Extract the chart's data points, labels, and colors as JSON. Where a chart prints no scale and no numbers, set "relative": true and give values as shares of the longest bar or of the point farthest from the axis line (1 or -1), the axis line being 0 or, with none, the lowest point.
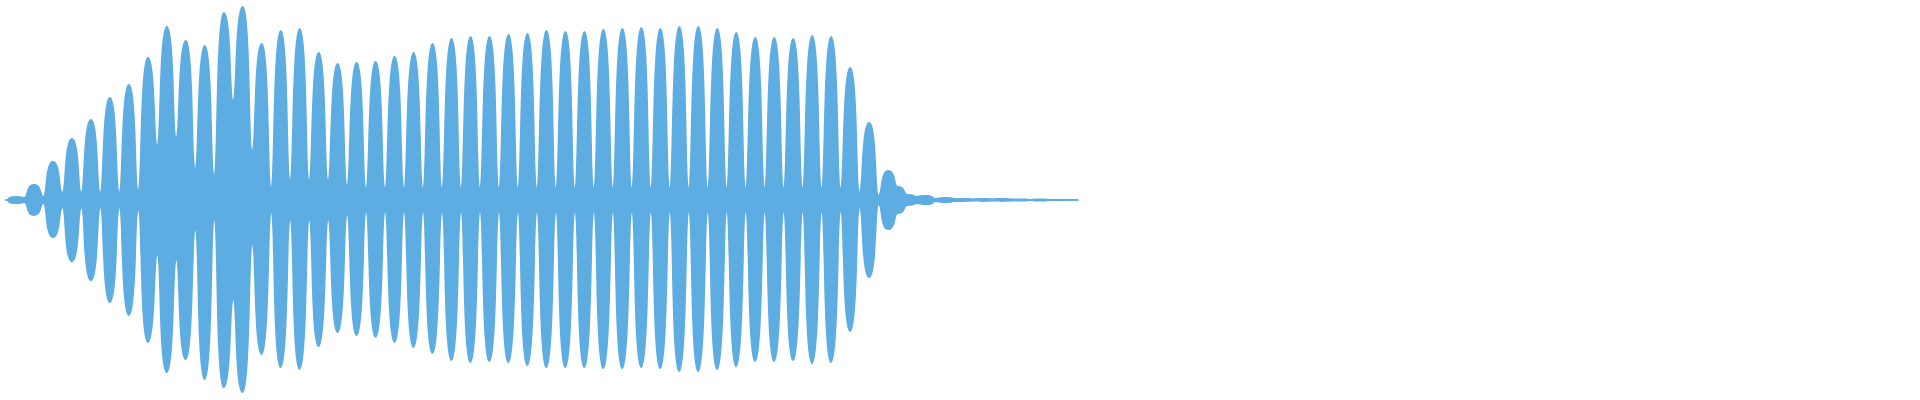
{
  "chart_data": {
    "type": "area",
    "relative": true,
    "categories": [
      null,
      null,
      null,
      null,
      null,
      null,
      null,
      null,
      null,
      null,
      null,
      null,
      null,
      null,
      null,
      null,
      null,
      null,
      null,
      null,
      null,
      null,
      null,
      null,
      null,
      null,
      null,
      null,
      null,
      null,
      null,
      null,
      null,
      null,
      null,
      null,
      null,
      null,
      null,
      null,
      null,
      null,
      null,
      null,
      null,
      null,
      null,
      null,
      null,
      null,
      null,
      null,
      null,
      null,
      null,
      null,
      null,
      null,
      null,
      null,
      null,
      null,
      null,
      null,
      null,
      null,
      null,
      null,
      null,
      null,
      null,
      null,
      null,
      null,
      null,
      null,
      null,
      null,
      null,
      null,
      null,
      null,
      null,
      null,
      null,
      null,
      null,
      null,
      null,
      null,
      null,
      null,
      null,
      null,
      null,
      null,
      null,
      null,
      null,
      null,
      null,
      null,
      null,
      null,
      null,
      null,
      null,
      null,
      null,
      null,
      null,
      null,
      null,
      null
    ],
    "series": [
      {
        "color": "#5dade2",
        "values": [
          0,
          0.021,
          0.015,
          0.082,
          0.021,
          0.201,
          0.041,
          0.32,
          0.041,
          0.418,
          0.041,
          0.531,
          0.041,
          0.598,
          0.052,
          0.737,
          0.284,
          0.897,
          0.325,
          0.825,
          0.165,
          0.799,
          0.129,
          0.969,
          0.515,
          1.0,
          0.258,
          0.809,
          0.067,
          0.876,
          0.103,
          0.887,
          0.103,
          0.763,
          0.103,
          0.706,
          0.077,
          0.711,
          0.062,
          0.716,
          0.062,
          0.742,
          0.062,
          0.763,
          0.062,
          0.809,
          0.062,
          0.835,
          0.062,
          0.845,
          0.062,
          0.845,
          0.062,
          0.856,
          0.062,
          0.861,
          0.062,
          0.876,
          0.062,
          0.871,
          0.062,
          0.871,
          0.062,
          0.881,
          0.062,
          0.887,
          0.062,
          0.892,
          0.062,
          0.887,
          0.062,
          0.897,
          0.062,
          0.897,
          0.062,
          0.887,
          0.062,
          0.866,
          0.062,
          0.84,
          0.062,
          0.84,
          0.062,
          0.835,
          0.062,
          0.851,
          0.062,
          0.845,
          0.062,
          0.686,
          0.041,
          0.402,
          0.026,
          0.155,
          0.072,
          0.031,
          0.021,
          0.026,
          0.01,
          0.015,
          0.01,
          0.01,
          0.008,
          0.01,
          0.008,
          0.01,
          0.008,
          0.008,
          0.005,
          0.008,
          0.005,
          0.005,
          0.005,
          0.003
        ]
      },
      {
        "color": "#5dade2",
        "values": [
          0,
          -0.021,
          -0.015,
          -0.082,
          -0.021,
          -0.196,
          -0.041,
          -0.32,
          -0.041,
          -0.418,
          -0.041,
          -0.531,
          -0.041,
          -0.598,
          -0.052,
          -0.737,
          -0.284,
          -0.892,
          -0.309,
          -0.825,
          -0.155,
          -0.928,
          -0.103,
          -0.969,
          -0.515,
          -0.995,
          -0.232,
          -0.799,
          -0.067,
          -0.866,
          -0.103,
          -0.876,
          -0.103,
          -0.758,
          -0.103,
          -0.686,
          -0.077,
          -0.701,
          -0.062,
          -0.711,
          -0.062,
          -0.737,
          -0.062,
          -0.763,
          -0.062,
          -0.794,
          -0.062,
          -0.83,
          -0.062,
          -0.84,
          -0.062,
          -0.835,
          -0.062,
          -0.84,
          -0.062,
          -0.856,
          -0.062,
          -0.866,
          -0.062,
          -0.866,
          -0.062,
          -0.866,
          -0.062,
          -0.871,
          -0.062,
          -0.871,
          -0.062,
          -0.866,
          -0.062,
          -0.871,
          -0.062,
          -0.887,
          -0.062,
          -0.887,
          -0.062,
          -0.876,
          -0.062,
          -0.861,
          -0.062,
          -0.835,
          -0.062,
          -0.835,
          -0.062,
          -0.83,
          -0.062,
          -0.845,
          -0.062,
          -0.84,
          -0.062,
          -0.68,
          -0.041,
          -0.402,
          -0.026,
          -0.155,
          -0.072,
          -0.031,
          -0.021,
          -0.026,
          -0.01,
          -0.015,
          -0.01,
          -0.01,
          -0.008,
          -0.01,
          -0.008,
          -0.01,
          -0.008,
          -0.008,
          -0.005,
          -0.008,
          -0.005,
          -0.005,
          -0.005,
          -0.003
        ]
      }
    ]
  }
}
